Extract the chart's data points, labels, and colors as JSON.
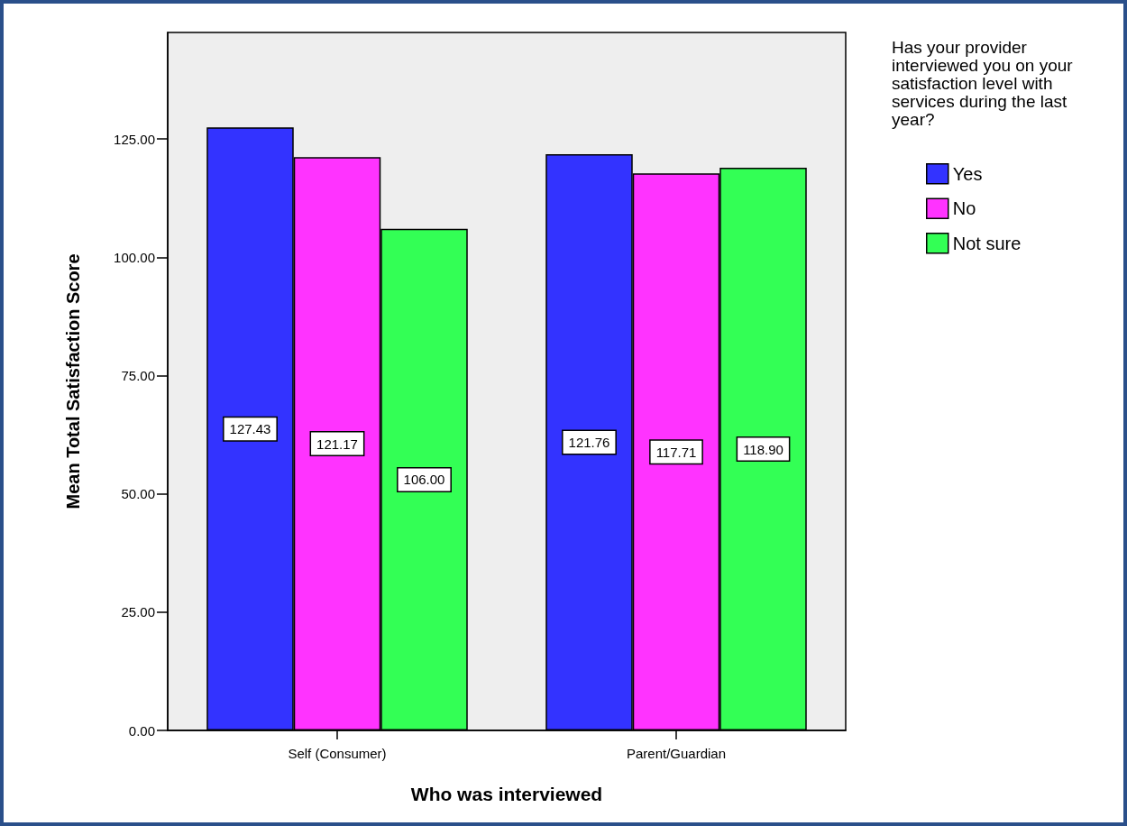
{
  "chart_data": {
    "type": "bar",
    "xlabel": "Who was interviewed",
    "ylabel": "Mean Total Satisfaction Score",
    "legend_title": "Has your provider interviewed you on your satisfaction level with services during the last year?",
    "categories": [
      "Self (Consumer)",
      "Parent/Guardian"
    ],
    "series": [
      {
        "name": "Yes",
        "color": "#3333ff",
        "values": [
          127.43,
          121.76
        ],
        "value_labels": [
          "127.43",
          "121.76"
        ]
      },
      {
        "name": "No",
        "color": "#ff33ff",
        "values": [
          121.17,
          117.71
        ],
        "value_labels": [
          "121.17",
          "117.71"
        ]
      },
      {
        "name": "Not sure",
        "color": "#33ff55",
        "values": [
          106.0,
          118.9
        ],
        "value_labels": [
          "106.00",
          "118.90"
        ]
      }
    ],
    "ylim": [
      0,
      147.5
    ],
    "yticks": [
      {
        "value": 0,
        "label": "0.00"
      },
      {
        "value": 25,
        "label": "25.00"
      },
      {
        "value": 50,
        "label": "50.00"
      },
      {
        "value": 75,
        "label": "75.00"
      },
      {
        "value": 100,
        "label": "100.00"
      },
      {
        "value": 125,
        "label": "125.00"
      }
    ],
    "grid": false,
    "legend": "top right"
  }
}
